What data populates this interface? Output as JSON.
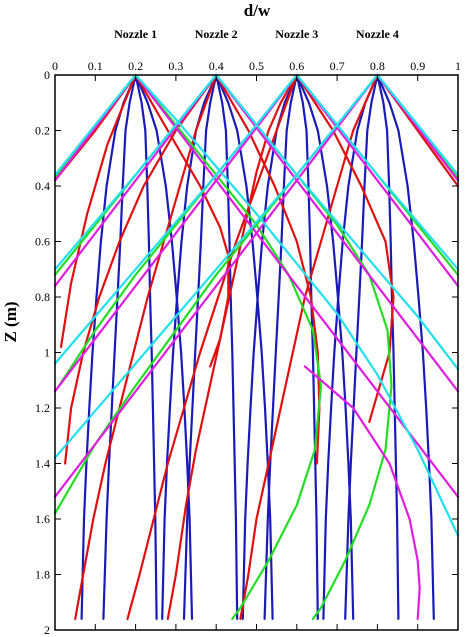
{
  "chart_data": {
    "type": "line",
    "title": "",
    "xlabel": "d/w",
    "ylabel": "Z (m)",
    "xlim": [
      0,
      1
    ],
    "ylim": [
      2,
      0
    ],
    "x_axis_position": "top",
    "y_axis_inverted": true,
    "grid": false,
    "legend": "none",
    "xticks": [
      "0",
      "0.1",
      "0.2",
      "0.3",
      "0.4",
      "0.5",
      "0.6",
      "0.7",
      "0.8",
      "0.9",
      "1"
    ],
    "yticks": [
      "0",
      "0.2",
      "0.4",
      "0.6",
      "0.8",
      "1",
      "1.2",
      "1.4",
      "1.6",
      "1.8",
      "2"
    ],
    "annotations": [
      {
        "text": "Nozzle 1",
        "x": 0.2
      },
      {
        "text": "Nozzle 2",
        "x": 0.4
      },
      {
        "text": "Nozzle 3",
        "x": 0.6
      },
      {
        "text": "Nozzle 4",
        "x": 0.8
      }
    ],
    "colors": {
      "blue": "#1a1ab8",
      "red": "#e01010",
      "green": "#22dd22",
      "magenta": "#e01ee0",
      "cyan": "#22e0ee"
    },
    "series": [
      {
        "color": "blue",
        "x": [
          0.2,
          0.185,
          0.175,
          0.168,
          0.162,
          0.155,
          0.148,
          0.141,
          0.134,
          0.128,
          0.12
        ],
        "y": [
          0.0,
          0.1,
          0.2,
          0.4,
          0.6,
          0.8,
          1.0,
          1.2,
          1.4,
          1.6,
          1.96
        ]
      },
      {
        "color": "blue",
        "x": [
          0.2,
          0.215,
          0.224,
          0.229,
          0.233,
          0.236,
          0.24,
          0.243,
          0.246,
          0.249,
          0.252
        ],
        "y": [
          0.0,
          0.1,
          0.2,
          0.4,
          0.6,
          0.8,
          1.0,
          1.2,
          1.4,
          1.6,
          1.96
        ]
      },
      {
        "color": "blue",
        "x": [
          0.2,
          0.17,
          0.15,
          0.128,
          0.114,
          0.103,
          0.093,
          0.085,
          0.078,
          0.072,
          0.066
        ],
        "y": [
          0.0,
          0.1,
          0.2,
          0.4,
          0.6,
          0.8,
          1.0,
          1.2,
          1.4,
          1.6,
          1.96
        ]
      },
      {
        "color": "blue",
        "x": [
          0.2,
          0.23,
          0.252,
          0.275,
          0.29,
          0.302,
          0.313,
          0.321,
          0.328,
          0.334,
          0.34
        ],
        "y": [
          0.0,
          0.1,
          0.2,
          0.4,
          0.6,
          0.8,
          1.0,
          1.2,
          1.4,
          1.6,
          1.96
        ]
      },
      {
        "color": "blue",
        "x": [
          0.4,
          0.385,
          0.375,
          0.368,
          0.362,
          0.355,
          0.348,
          0.341,
          0.334,
          0.328,
          0.32
        ],
        "y": [
          0.0,
          0.1,
          0.2,
          0.4,
          0.6,
          0.8,
          1.0,
          1.2,
          1.4,
          1.6,
          1.96
        ]
      },
      {
        "color": "blue",
        "x": [
          0.4,
          0.415,
          0.424,
          0.429,
          0.433,
          0.436,
          0.44,
          0.443,
          0.446,
          0.449,
          0.452
        ],
        "y": [
          0.0,
          0.1,
          0.2,
          0.4,
          0.6,
          0.8,
          1.0,
          1.2,
          1.4,
          1.6,
          1.96
        ]
      },
      {
        "color": "blue",
        "x": [
          0.4,
          0.37,
          0.35,
          0.328,
          0.314,
          0.303,
          0.293,
          0.285,
          0.278,
          0.272,
          0.266
        ],
        "y": [
          0.0,
          0.1,
          0.2,
          0.4,
          0.6,
          0.8,
          1.0,
          1.2,
          1.4,
          1.6,
          1.96
        ]
      },
      {
        "color": "blue",
        "x": [
          0.4,
          0.43,
          0.452,
          0.475,
          0.49,
          0.502,
          0.513,
          0.521,
          0.528,
          0.534,
          0.54
        ],
        "y": [
          0.0,
          0.1,
          0.2,
          0.4,
          0.6,
          0.8,
          1.0,
          1.2,
          1.4,
          1.6,
          1.96
        ]
      },
      {
        "color": "blue",
        "x": [
          0.6,
          0.585,
          0.575,
          0.568,
          0.562,
          0.555,
          0.548,
          0.541,
          0.534,
          0.528,
          0.52
        ],
        "y": [
          0.0,
          0.1,
          0.2,
          0.4,
          0.6,
          0.8,
          1.0,
          1.2,
          1.4,
          1.6,
          1.96
        ]
      },
      {
        "color": "blue",
        "x": [
          0.6,
          0.615,
          0.624,
          0.629,
          0.633,
          0.636,
          0.64,
          0.643,
          0.646,
          0.649,
          0.652
        ],
        "y": [
          0.0,
          0.1,
          0.2,
          0.4,
          0.6,
          0.8,
          1.0,
          1.2,
          1.4,
          1.6,
          1.96
        ]
      },
      {
        "color": "blue",
        "x": [
          0.6,
          0.57,
          0.55,
          0.528,
          0.514,
          0.503,
          0.493,
          0.485,
          0.478,
          0.472,
          0.466
        ],
        "y": [
          0.0,
          0.1,
          0.2,
          0.4,
          0.6,
          0.8,
          1.0,
          1.2,
          1.4,
          1.6,
          1.96
        ]
      },
      {
        "color": "blue",
        "x": [
          0.6,
          0.63,
          0.652,
          0.675,
          0.69,
          0.702,
          0.713,
          0.721,
          0.728,
          0.734,
          0.74
        ],
        "y": [
          0.0,
          0.1,
          0.2,
          0.4,
          0.6,
          0.8,
          1.0,
          1.2,
          1.4,
          1.6,
          1.96
        ]
      },
      {
        "color": "blue",
        "x": [
          0.8,
          0.785,
          0.775,
          0.768,
          0.762,
          0.755,
          0.748,
          0.741,
          0.734,
          0.728,
          0.72
        ],
        "y": [
          0.0,
          0.1,
          0.2,
          0.4,
          0.6,
          0.8,
          1.0,
          1.2,
          1.4,
          1.6,
          1.96
        ]
      },
      {
        "color": "blue",
        "x": [
          0.8,
          0.815,
          0.824,
          0.829,
          0.833,
          0.836,
          0.84,
          0.843,
          0.846,
          0.849,
          0.852
        ],
        "y": [
          0.0,
          0.1,
          0.2,
          0.4,
          0.6,
          0.8,
          1.0,
          1.2,
          1.4,
          1.6,
          1.96
        ]
      },
      {
        "color": "blue",
        "x": [
          0.8,
          0.77,
          0.75,
          0.728,
          0.714,
          0.703,
          0.693,
          0.685,
          0.678,
          0.672,
          0.666
        ],
        "y": [
          0.0,
          0.1,
          0.2,
          0.4,
          0.6,
          0.8,
          1.0,
          1.2,
          1.4,
          1.6,
          1.96
        ]
      },
      {
        "color": "blue",
        "x": [
          0.8,
          0.83,
          0.852,
          0.875,
          0.89,
          0.902,
          0.913,
          0.921,
          0.928,
          0.934,
          0.94
        ],
        "y": [
          0.0,
          0.1,
          0.2,
          0.4,
          0.6,
          0.8,
          1.0,
          1.2,
          1.4,
          1.6,
          1.96
        ]
      },
      {
        "color": "red",
        "x": [
          0.2,
          0.1,
          0.0
        ],
        "y": [
          0.0,
          0.2,
          0.38
        ]
      },
      {
        "color": "red",
        "x": [
          0.2,
          0.13,
          0.08,
          0.04,
          0.015
        ],
        "y": [
          0.0,
          0.25,
          0.5,
          0.75,
          0.98
        ]
      },
      {
        "color": "red",
        "x": [
          0.2,
          0.28,
          0.36,
          0.41,
          0.43,
          0.43,
          0.41,
          0.385
        ],
        "y": [
          0.0,
          0.2,
          0.4,
          0.55,
          0.65,
          0.8,
          0.95,
          1.05
        ]
      },
      {
        "color": "red",
        "x": [
          0.4,
          0.3,
          0.22,
          0.16,
          0.11,
          0.07,
          0.04,
          0.025
        ],
        "y": [
          0.0,
          0.2,
          0.4,
          0.6,
          0.8,
          1.0,
          1.2,
          1.4
        ]
      },
      {
        "color": "red",
        "x": [
          0.4,
          0.35,
          0.31,
          0.27,
          0.23,
          0.195,
          0.16,
          0.125,
          0.095,
          0.07,
          0.05
        ],
        "y": [
          0.0,
          0.2,
          0.4,
          0.6,
          0.8,
          1.0,
          1.2,
          1.4,
          1.6,
          1.8,
          1.96
        ]
      },
      {
        "color": "red",
        "x": [
          0.4,
          0.48,
          0.545,
          0.6,
          0.635,
          0.652,
          0.656,
          0.65
        ],
        "y": [
          0.0,
          0.2,
          0.4,
          0.6,
          0.8,
          1.0,
          1.2,
          1.4
        ]
      },
      {
        "color": "red",
        "x": [
          0.6,
          0.55,
          0.5,
          0.45,
          0.405,
          0.36,
          0.32,
          0.28,
          0.245,
          0.21,
          0.18
        ],
        "y": [
          0.0,
          0.2,
          0.4,
          0.6,
          0.8,
          1.0,
          1.2,
          1.4,
          1.6,
          1.8,
          1.96
        ]
      },
      {
        "color": "red",
        "x": [
          0.6,
          0.56,
          0.53,
          0.5,
          0.47,
          0.44,
          0.41,
          0.38,
          0.35,
          0.325,
          0.3,
          0.28
        ],
        "y": [
          0.0,
          0.1,
          0.2,
          0.35,
          0.55,
          0.75,
          0.95,
          1.15,
          1.35,
          1.55,
          1.8,
          1.96
        ]
      },
      {
        "color": "red",
        "x": [
          0.6,
          0.69,
          0.76,
          0.82,
          0.84,
          0.83,
          0.8,
          0.78
        ],
        "y": [
          0.0,
          0.2,
          0.4,
          0.6,
          0.8,
          1.0,
          1.15,
          1.25
        ]
      },
      {
        "color": "red",
        "x": [
          0.8,
          0.86,
          0.91,
          0.95,
          1.0
        ],
        "y": [
          0.0,
          0.12,
          0.22,
          0.3,
          0.4
        ]
      },
      {
        "color": "red",
        "x": [
          0.8,
          0.74,
          0.7,
          0.66,
          0.62,
          0.59,
          0.56,
          0.53,
          0.5,
          0.48,
          0.46
        ],
        "y": [
          0.0,
          0.2,
          0.4,
          0.6,
          0.8,
          1.0,
          1.2,
          1.4,
          1.6,
          1.8,
          1.96
        ]
      },
      {
        "color": "green",
        "x": [
          0.2,
          0.1,
          0.0
        ],
        "y": [
          0.0,
          0.18,
          0.37
        ]
      },
      {
        "color": "green",
        "x": [
          0.4,
          0.3,
          0.2,
          0.1,
          0.0
        ],
        "y": [
          0.0,
          0.18,
          0.36,
          0.54,
          0.72
        ]
      },
      {
        "color": "green",
        "x": [
          0.6,
          0.5,
          0.4,
          0.3,
          0.2,
          0.1,
          0.01
        ],
        "y": [
          0.0,
          0.18,
          0.36,
          0.54,
          0.72,
          0.92,
          1.12
        ]
      },
      {
        "color": "green",
        "x": [
          0.8,
          0.7,
          0.6,
          0.5,
          0.4,
          0.3,
          0.2,
          0.1,
          0.0
        ],
        "y": [
          0.0,
          0.18,
          0.36,
          0.54,
          0.72,
          0.92,
          1.12,
          1.33,
          1.58
        ]
      },
      {
        "color": "green",
        "x": [
          0.2,
          0.3,
          0.4,
          0.5,
          0.58,
          0.64,
          0.66,
          0.645,
          0.6,
          0.53,
          0.46,
          0.44
        ],
        "y": [
          0.0,
          0.18,
          0.36,
          0.54,
          0.72,
          0.92,
          1.12,
          1.35,
          1.55,
          1.75,
          1.92,
          1.96
        ]
      },
      {
        "color": "green",
        "x": [
          0.4,
          0.5,
          0.6,
          0.7,
          0.78,
          0.825,
          0.835,
          0.82,
          0.78,
          0.72,
          0.66,
          0.64
        ],
        "y": [
          0.0,
          0.18,
          0.36,
          0.54,
          0.72,
          0.92,
          1.12,
          1.35,
          1.55,
          1.75,
          1.92,
          1.96
        ]
      },
      {
        "color": "green",
        "x": [
          0.6,
          0.7,
          0.8,
          0.9,
          1.0
        ],
        "y": [
          0.0,
          0.18,
          0.36,
          0.54,
          0.72
        ]
      },
      {
        "color": "green",
        "x": [
          0.8,
          0.9,
          1.0
        ],
        "y": [
          0.0,
          0.18,
          0.37
        ]
      },
      {
        "color": "magenta",
        "x": [
          0.2,
          0.1,
          0.0
        ],
        "y": [
          0.0,
          0.19,
          0.38
        ]
      },
      {
        "color": "magenta",
        "x": [
          0.4,
          0.3,
          0.2,
          0.1,
          0.0
        ],
        "y": [
          0.0,
          0.19,
          0.38,
          0.57,
          0.76
        ]
      },
      {
        "color": "magenta",
        "x": [
          0.6,
          0.5,
          0.4,
          0.3,
          0.2,
          0.1,
          0.0
        ],
        "y": [
          0.0,
          0.19,
          0.38,
          0.57,
          0.76,
          0.95,
          1.14
        ]
      },
      {
        "color": "magenta",
        "x": [
          0.8,
          0.7,
          0.6,
          0.5,
          0.4,
          0.3,
          0.2,
          0.1,
          0.0
        ],
        "y": [
          0.0,
          0.19,
          0.38,
          0.57,
          0.76,
          0.95,
          1.14,
          1.33,
          1.52
        ]
      },
      {
        "color": "magenta",
        "x": [
          0.2,
          0.3,
          0.4,
          0.5,
          0.6,
          0.7,
          0.8,
          0.9,
          1.0
        ],
        "y": [
          0.0,
          0.19,
          0.38,
          0.57,
          0.76,
          0.95,
          1.14,
          1.33,
          1.52
        ]
      },
      {
        "color": "magenta",
        "x": [
          0.4,
          0.5,
          0.6,
          0.7,
          0.8,
          0.9,
          1.0
        ],
        "y": [
          0.0,
          0.19,
          0.38,
          0.57,
          0.76,
          0.95,
          1.14
        ]
      },
      {
        "color": "magenta",
        "x": [
          0.6,
          0.7,
          0.8,
          0.9,
          1.0
        ],
        "y": [
          0.0,
          0.19,
          0.38,
          0.57,
          0.76
        ]
      },
      {
        "color": "magenta",
        "x": [
          0.8,
          0.9,
          1.0
        ],
        "y": [
          0.0,
          0.19,
          0.38
        ]
      },
      {
        "color": "magenta",
        "x": [
          0.62,
          0.74,
          0.83,
          0.88,
          0.9,
          0.905,
          0.9
        ],
        "y": [
          1.05,
          1.2,
          1.4,
          1.6,
          1.75,
          1.85,
          1.96
        ]
      },
      {
        "color": "cyan",
        "x": [
          0.2,
          0.1,
          0.0
        ],
        "y": [
          0.0,
          0.18,
          0.36
        ]
      },
      {
        "color": "cyan",
        "x": [
          0.4,
          0.3,
          0.2,
          0.1,
          0.0
        ],
        "y": [
          0.0,
          0.18,
          0.36,
          0.53,
          0.7
        ]
      },
      {
        "color": "cyan",
        "x": [
          0.6,
          0.5,
          0.4,
          0.3,
          0.2,
          0.1,
          0.0
        ],
        "y": [
          0.0,
          0.18,
          0.36,
          0.53,
          0.7,
          0.87,
          1.04
        ]
      },
      {
        "color": "cyan",
        "x": [
          0.8,
          0.7,
          0.6,
          0.5,
          0.4,
          0.3,
          0.2,
          0.1,
          0.0
        ],
        "y": [
          0.0,
          0.18,
          0.36,
          0.53,
          0.7,
          0.87,
          1.04,
          1.21,
          1.38
        ]
      },
      {
        "color": "cyan",
        "x": [
          0.2,
          0.3,
          0.4,
          0.5,
          0.6,
          0.7,
          0.8,
          0.9,
          1.0
        ],
        "y": [
          0.0,
          0.16,
          0.33,
          0.5,
          0.68,
          0.86,
          1.08,
          1.35,
          1.66
        ]
      },
      {
        "color": "cyan",
        "x": [
          0.4,
          0.5,
          0.6,
          0.7,
          0.8,
          0.9,
          1.0
        ],
        "y": [
          0.0,
          0.18,
          0.36,
          0.53,
          0.7,
          0.87,
          1.06
        ]
      },
      {
        "color": "cyan",
        "x": [
          0.6,
          0.7,
          0.8,
          0.9,
          1.0
        ],
        "y": [
          0.0,
          0.18,
          0.36,
          0.53,
          0.7
        ]
      },
      {
        "color": "cyan",
        "x": [
          0.8,
          0.9,
          1.0
        ],
        "y": [
          0.0,
          0.18,
          0.36
        ]
      }
    ]
  }
}
